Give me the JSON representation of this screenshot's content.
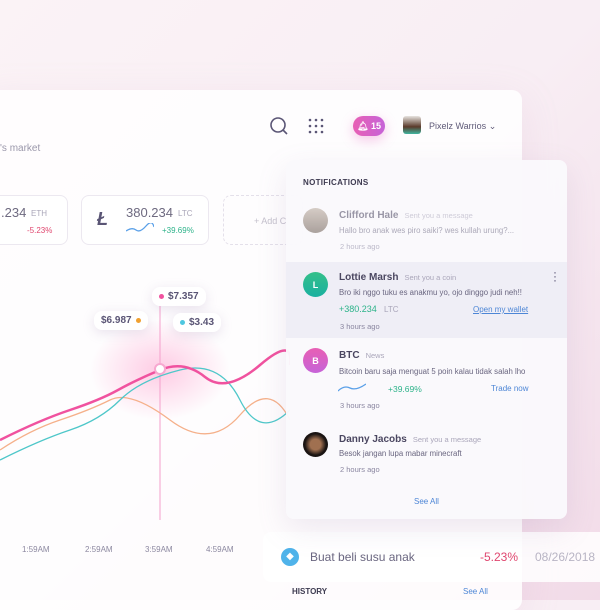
{
  "header": {
    "subtitle": "'s market",
    "user_name": "Pixelz Warrios",
    "notification_count": "15"
  },
  "coins": [
    {
      "value": ".234",
      "unit": "ETH",
      "change": "-5.23%",
      "color": "#e0476f"
    },
    {
      "value": "380.234",
      "unit": "LTC",
      "change": "+39.69%",
      "color": "#2db38a"
    }
  ],
  "add_card": "+ Add C",
  "chart": {
    "tooltips": [
      "$6.987",
      "$7.357",
      "$3.43"
    ],
    "x_labels": [
      "1:59AM",
      "2:59AM",
      "3:59AM",
      "4:59AM"
    ]
  },
  "notifications": {
    "title": "NOTIFICATIONS",
    "see_all": "See All",
    "items": [
      {
        "name": "Clifford Hale",
        "action": "Sent you a message",
        "message": "Hallo bro anak wes piro saiki? wes kullah urung?...",
        "time": "2 hours ago"
      },
      {
        "name": "Lottie Marsh",
        "initial": "L",
        "action": "Sent you a coin",
        "message": "Bro iki nggo tuku es anakmu yo, ojo dinggo judi neh!!",
        "amount": "+380.234",
        "unit": "LTC",
        "link": "Open my wallet",
        "time": "3 hours ago"
      },
      {
        "name": "BTC",
        "initial": "B",
        "action": "News",
        "message": "Bitcoin baru saja menguat 5 poin kalau tidak salah lho",
        "change": "+39.69%",
        "link": "Trade now",
        "time": "3 hours ago"
      },
      {
        "name": "Danny Jacobs",
        "action": "Sent you a message",
        "message": "Besok jangan lupa mabar minecraft",
        "time": "2 hours ago"
      }
    ]
  },
  "transaction": {
    "label": "Buat beli susu anak",
    "change": "-5.23%",
    "date": "08/26/2018"
  },
  "history": {
    "title": "HISTORY",
    "see_all": "See All"
  }
}
